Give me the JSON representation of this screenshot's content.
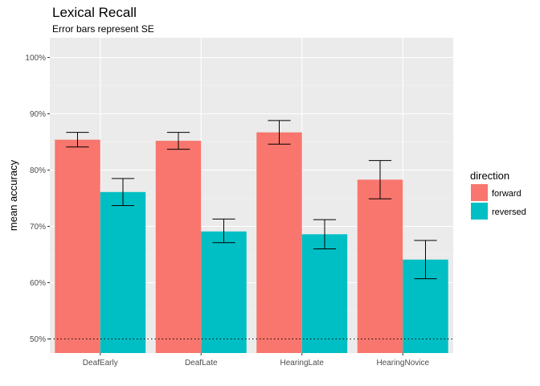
{
  "chart_data": {
    "type": "bar",
    "title": "Lexical Recall",
    "subtitle": "Error bars represent SE",
    "xlabel": "",
    "ylabel": "mean accuracy",
    "categories": [
      "DeafEarly",
      "DeafLate",
      "HearingLate",
      "HearingNovice"
    ],
    "ylim": [
      0.475,
      1.035
    ],
    "yticks": [
      0.5,
      0.6,
      0.7,
      0.8,
      0.9,
      1.0
    ],
    "ytick_labels": [
      "50%",
      "60%",
      "70%",
      "80%",
      "90%",
      "100%"
    ],
    "reference_line": 0.5,
    "grid": true,
    "legend": {
      "title": "direction",
      "position": "right"
    },
    "series": [
      {
        "name": "forward",
        "color": "#F8766D",
        "values": [
          0.854,
          0.852,
          0.867,
          0.783
        ],
        "error_low": [
          0.841,
          0.837,
          0.846,
          0.749
        ],
        "error_high": [
          0.867,
          0.867,
          0.888,
          0.817
        ]
      },
      {
        "name": "reversed",
        "color": "#00BFC4",
        "values": [
          0.761,
          0.691,
          0.686,
          0.641
        ],
        "error_low": [
          0.737,
          0.671,
          0.66,
          0.607
        ],
        "error_high": [
          0.785,
          0.713,
          0.712,
          0.675
        ]
      }
    ]
  }
}
